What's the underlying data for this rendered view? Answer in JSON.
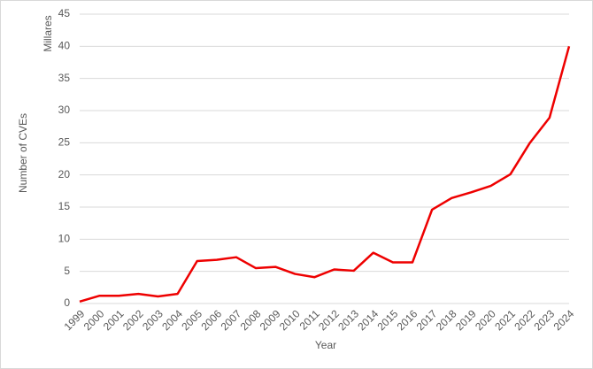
{
  "chart_data": {
    "type": "line",
    "x_label": "Year",
    "y_label": "Number of CVEs",
    "y_unit_label": "Millares",
    "categories": [
      "1999",
      "2000",
      "2001",
      "2002",
      "2003",
      "2004",
      "2005",
      "2006",
      "2007",
      "2008",
      "2009",
      "2010",
      "2011",
      "2012",
      "2013",
      "2014",
      "2015",
      "2016",
      "2017",
      "2018",
      "2019",
      "2020",
      "2021",
      "2022",
      "2023",
      "2024"
    ],
    "series": [
      {
        "color": "#ee0000",
        "values": [
          0.3,
          1.2,
          1.2,
          1.5,
          1.1,
          1.5,
          6.6,
          6.8,
          7.2,
          5.5,
          5.7,
          4.6,
          4.1,
          5.3,
          5.1,
          7.9,
          6.4,
          6.4,
          14.6,
          16.4,
          17.3,
          18.3,
          20.1,
          25.0,
          28.9,
          40.0
        ]
      }
    ],
    "ylim": [
      0,
      45
    ],
    "yticks": [
      0,
      5,
      10,
      15,
      20,
      25,
      30,
      35,
      40,
      45
    ],
    "grid": true
  }
}
